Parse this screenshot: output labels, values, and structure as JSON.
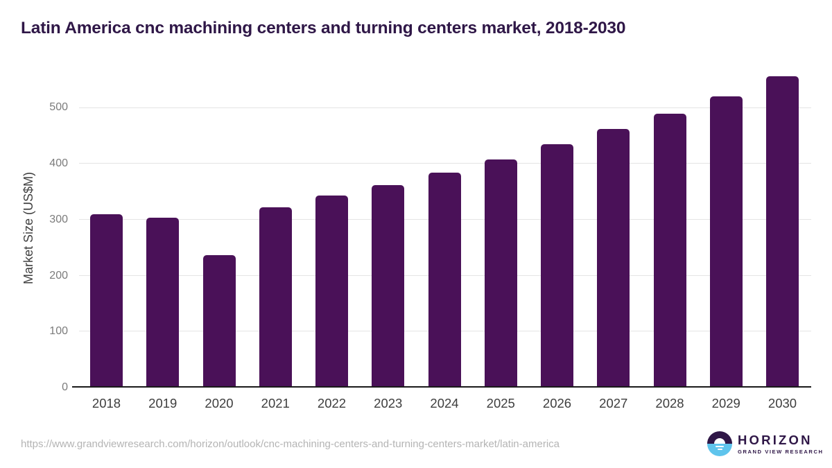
{
  "chart_data": {
    "type": "bar",
    "title": "Latin America cnc machining centers and turning centers market, 2018-2030",
    "categories": [
      "2018",
      "2019",
      "2020",
      "2021",
      "2022",
      "2023",
      "2024",
      "2025",
      "2026",
      "2027",
      "2028",
      "2029",
      "2030"
    ],
    "values": [
      310,
      304,
      237,
      322,
      343,
      362,
      384,
      408,
      435,
      462,
      490,
      521,
      556
    ],
    "xlabel": "",
    "ylabel": "Market Size (US$M)",
    "ylim": [
      0,
      570
    ],
    "yticks": [
      0,
      100,
      200,
      300,
      400,
      500
    ],
    "grid": true,
    "legend_position": "none",
    "bar_color": "#4a1158",
    "title_color": "#2f1747"
  },
  "footer": {
    "source_url": "https://www.grandviewresearch.com/horizon/outlook/cnc-machining-centers-and-turning-centers-market/latin-america",
    "logo": {
      "brand": "HORIZON",
      "sub_brand": "GRAND VIEW RESEARCH",
      "brand_color": "#2f1747",
      "icon_top_color": "#2f1747",
      "icon_bottom_color": "#5fc4ec"
    }
  }
}
